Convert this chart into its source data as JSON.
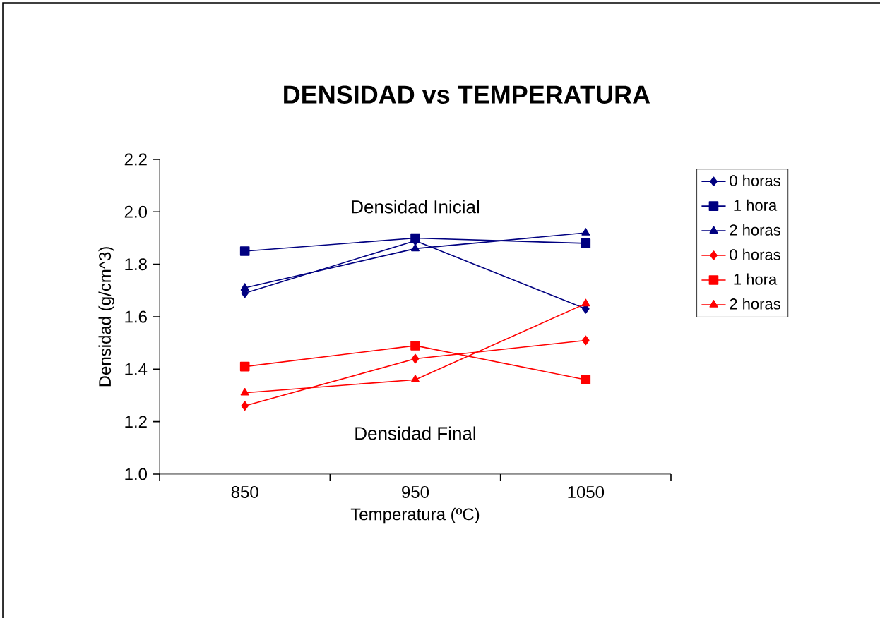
{
  "chart_data": {
    "type": "line",
    "title": "DENSIDAD vs TEMPERATURA",
    "xlabel": "Temperatura (ºC)",
    "ylabel": "Densidad (g/cm^3)",
    "categories": [
      "850",
      "950",
      "1050"
    ],
    "series": [
      {
        "name": "0 horas",
        "color": "#000080",
        "marker": "diamond",
        "values": [
          1.69,
          1.89,
          1.63
        ]
      },
      {
        "name": "1 hora",
        "color": "#000080",
        "marker": "square",
        "values": [
          1.85,
          1.9,
          1.88
        ]
      },
      {
        "name": "2 horas",
        "color": "#000080",
        "marker": "triangle",
        "values": [
          1.71,
          1.86,
          1.92
        ]
      },
      {
        "name": "0 horas",
        "color": "#ff0000",
        "marker": "diamond",
        "values": [
          1.26,
          1.44,
          1.51
        ]
      },
      {
        "name": "1 hora",
        "color": "#ff0000",
        "marker": "square",
        "values": [
          1.41,
          1.49,
          1.36
        ]
      },
      {
        "name": "2 horas",
        "color": "#ff0000",
        "marker": "triangle",
        "values": [
          1.31,
          1.36,
          1.65
        ]
      }
    ],
    "annotations": [
      "Densidad Inicial",
      "Densidad Final"
    ],
    "ylim": [
      1.0,
      2.2
    ],
    "yticks": [
      {
        "value": 1.0,
        "label": "1.0"
      },
      1.2,
      1.4,
      1.6,
      1.8,
      {
        "value": 2.0,
        "label": "2.0"
      },
      2.2
    ],
    "grid": false,
    "legend": "right",
    "line_style": "solid"
  }
}
